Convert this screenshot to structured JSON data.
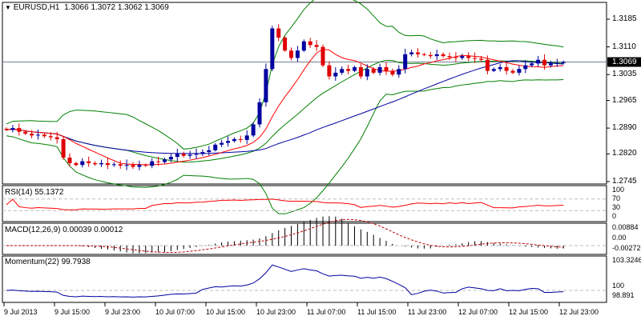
{
  "header": {
    "symbol": "EURUSD,H1",
    "open": "1.3066",
    "high": "1.3072",
    "low": "1.3062",
    "close": "1.3069"
  },
  "chart_data": {
    "type": "candlestick",
    "title": "EURUSD,H1",
    "price_ticks": [
      "1.3185",
      "1.3110",
      "1.3035",
      "1.2965",
      "1.2890",
      "1.2820",
      "1.2745"
    ],
    "ylim": [
      1.2745,
      1.3185
    ],
    "current_price": "1.3069",
    "x_ticks": [
      "9 Jul 2013",
      "9 Jul 15:00",
      "9 Jul 23:00",
      "10 Jul 07:00",
      "10 Jul 15:00",
      "10 Jul 23:00",
      "11 Jul 07:00",
      "11 Jul 15:00",
      "11 Jul 23:00",
      "12 Jul 07:00",
      "12 Jul 15:00",
      "12 Jul 23:00"
    ],
    "closes": [
      1.2885,
      1.289,
      1.288,
      1.2875,
      1.287,
      1.2872,
      1.2868,
      1.2865,
      1.286,
      1.281,
      1.2795,
      1.279,
      1.28,
      1.2795,
      1.2792,
      1.2795,
      1.279,
      1.2792,
      1.2788,
      1.279,
      1.2785,
      1.279,
      1.2788,
      1.28,
      1.2798,
      1.2805,
      1.2812,
      1.282,
      1.2815,
      1.2818,
      1.282,
      1.2825,
      1.283,
      1.2845,
      1.285,
      1.2855,
      1.286,
      1.2858,
      1.287,
      1.29,
      1.296,
      1.305,
      1.316,
      1.3135,
      1.31,
      1.308,
      1.31,
      1.3125,
      1.3115,
      1.311,
      1.306,
      1.303,
      1.304,
      1.305,
      1.3045,
      1.3055,
      1.303,
      1.305,
      1.304,
      1.3055,
      1.3045,
      1.3035,
      1.305,
      1.309,
      1.3095,
      1.309,
      1.3088,
      1.3085,
      1.309,
      1.3085,
      1.3082,
      1.308,
      1.3085,
      1.308,
      1.3078,
      1.3075,
      1.3045,
      1.305,
      1.3055,
      1.3045,
      1.304,
      1.305,
      1.306,
      1.3065,
      1.3075,
      1.306,
      1.3065,
      1.3066,
      1.3069
    ],
    "indicators": {
      "rsi": {
        "label": "RSI(14) 55.1372",
        "levels": [
          "100",
          "70",
          "30",
          "0"
        ]
      },
      "macd": {
        "label": "MACD(12,26,9) 0.00039 0.00012",
        "ticks": [
          "0.00884",
          "0.00",
          "-0.00272"
        ]
      },
      "momentum": {
        "label": "Momentum(22) 99.7938",
        "ticks": [
          "103.3246",
          "100",
          "98.891"
        ]
      }
    },
    "colors": {
      "bull": "#0000a0",
      "bear": "#e00000",
      "bands": "#008000",
      "ma_fast": "#ff0000",
      "ma_slow": "#0000a0"
    }
  }
}
